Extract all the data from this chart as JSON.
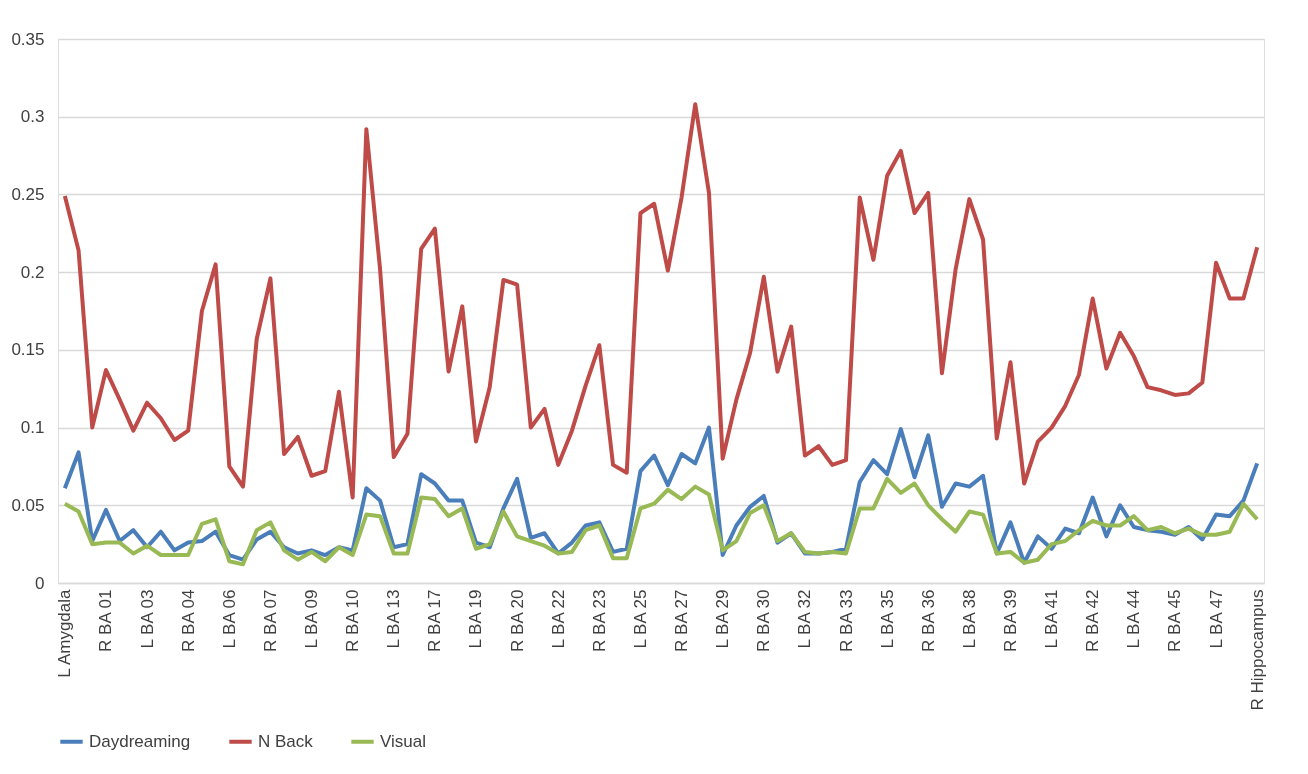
{
  "chart_data": {
    "type": "line",
    "categories": [
      "L Amygdala",
      null,
      null,
      "R BA 01",
      null,
      null,
      "L BA 03",
      null,
      null,
      "R BA 04",
      null,
      null,
      "L BA 06",
      null,
      null,
      "R BA 07",
      null,
      null,
      "L BA 09",
      null,
      null,
      "R BA 10",
      null,
      null,
      "L BA 13",
      null,
      null,
      "R BA 17",
      null,
      null,
      "L BA 19",
      null,
      null,
      "R BA 20",
      null,
      null,
      "L BA 22",
      null,
      null,
      "R BA 23",
      null,
      null,
      "L BA 25",
      null,
      null,
      "R BA 27",
      null,
      null,
      "L BA 29",
      null,
      null,
      "R BA 30",
      null,
      null,
      "L BA 32",
      null,
      null,
      "R BA 33",
      null,
      null,
      "L BA 35",
      null,
      null,
      "R BA 36",
      null,
      null,
      "L BA 38",
      null,
      null,
      "R BA 39",
      null,
      null,
      "L BA 41",
      null,
      null,
      "R BA 42",
      null,
      null,
      "L BA 44",
      null,
      null,
      "R BA 45",
      null,
      null,
      "L BA 47",
      null,
      null,
      "R Hippocampus"
    ],
    "series": [
      {
        "name": "Daydreaming",
        "color": "#4a7ebb",
        "values": [
          0.061,
          0.084,
          0.027,
          0.047,
          0.027,
          0.034,
          0.023,
          0.033,
          0.021,
          0.026,
          0.027,
          0.033,
          0.018,
          0.015,
          0.028,
          0.033,
          0.023,
          0.019,
          0.021,
          0.018,
          0.023,
          0.021,
          0.061,
          0.053,
          0.023,
          0.025,
          0.07,
          0.064,
          0.053,
          0.053,
          0.026,
          0.023,
          0.048,
          0.067,
          0.029,
          0.032,
          0.019,
          0.026,
          0.037,
          0.039,
          0.02,
          0.022,
          0.072,
          0.082,
          0.063,
          0.083,
          0.077,
          0.1,
          0.018,
          0.037,
          0.049,
          0.056,
          0.026,
          0.032,
          0.019,
          0.019,
          0.02,
          0.022,
          0.065,
          0.079,
          0.07,
          0.099,
          0.068,
          0.095,
          0.049,
          0.064,
          0.062,
          0.069,
          0.019,
          0.039,
          0.013,
          0.03,
          0.022,
          0.035,
          0.032,
          0.055,
          0.03,
          0.05,
          0.036,
          0.034,
          0.033,
          0.031,
          0.036,
          0.028,
          0.044,
          0.043,
          0.053,
          0.077
        ]
      },
      {
        "name": "N Back",
        "color": "#be4b48",
        "values": [
          0.249,
          0.214,
          0.1,
          0.137,
          0.118,
          0.098,
          0.116,
          0.106,
          0.092,
          0.098,
          0.175,
          0.205,
          0.075,
          0.062,
          0.157,
          0.196,
          0.083,
          0.094,
          0.069,
          0.072,
          0.123,
          0.055,
          0.292,
          0.202,
          0.081,
          0.096,
          0.215,
          0.228,
          0.136,
          0.178,
          0.091,
          0.126,
          0.195,
          0.192,
          0.1,
          0.112,
          0.076,
          0.098,
          0.127,
          0.153,
          0.076,
          0.071,
          0.238,
          0.244,
          0.201,
          0.248,
          0.308,
          0.251,
          0.08,
          0.118,
          0.148,
          0.197,
          0.136,
          0.165,
          0.082,
          0.088,
          0.076,
          0.079,
          0.248,
          0.208,
          0.262,
          0.278,
          0.238,
          0.251,
          0.135,
          0.202,
          0.247,
          0.221,
          0.093,
          0.142,
          0.064,
          0.091,
          0.1,
          0.114,
          0.134,
          0.183,
          0.138,
          0.161,
          0.146,
          0.126,
          0.124,
          0.121,
          0.122,
          0.129,
          0.206,
          0.183,
          0.183,
          0.216
        ]
      },
      {
        "name": "Visual",
        "color": "#98b954",
        "values": [
          0.051,
          0.046,
          0.025,
          0.026,
          0.026,
          0.019,
          0.024,
          0.018,
          0.018,
          0.018,
          0.038,
          0.041,
          0.014,
          0.012,
          0.034,
          0.039,
          0.021,
          0.015,
          0.02,
          0.014,
          0.023,
          0.018,
          0.044,
          0.043,
          0.019,
          0.019,
          0.055,
          0.054,
          0.043,
          0.048,
          0.022,
          0.025,
          0.046,
          0.03,
          0.027,
          0.024,
          0.019,
          0.02,
          0.034,
          0.037,
          0.016,
          0.016,
          0.048,
          0.051,
          0.06,
          0.054,
          0.062,
          0.057,
          0.021,
          0.027,
          0.045,
          0.05,
          0.027,
          0.032,
          0.02,
          0.019,
          0.02,
          0.019,
          0.048,
          0.048,
          0.067,
          0.058,
          0.064,
          0.05,
          0.041,
          0.033,
          0.046,
          0.044,
          0.019,
          0.02,
          0.013,
          0.015,
          0.025,
          0.027,
          0.034,
          0.04,
          0.037,
          0.037,
          0.043,
          0.034,
          0.036,
          0.032,
          0.035,
          0.031,
          0.031,
          0.033,
          0.051,
          0.041
        ]
      }
    ],
    "ylim": [
      0,
      0.35
    ],
    "yticks": [
      0,
      0.05,
      0.1,
      0.15,
      0.2,
      0.25,
      0.3,
      0.35
    ],
    "grid": "y",
    "legend": "bottom",
    "marker": "none",
    "line_style": "solid"
  }
}
